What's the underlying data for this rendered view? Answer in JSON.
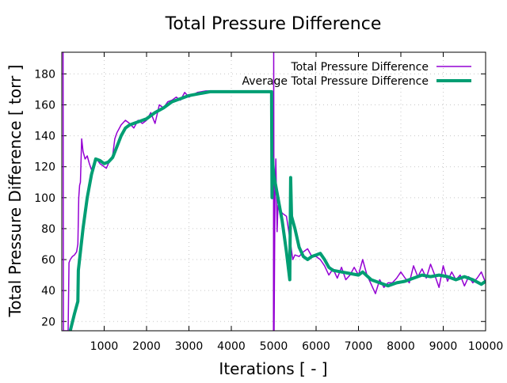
{
  "chart_data": {
    "type": "line",
    "title": "Total Pressure Difference",
    "xlabel": "Iterations [ - ]",
    "ylabel": "Total Pressure Difference [ torr ]",
    "xlim": [
      0,
      10000
    ],
    "ylim": [
      14,
      194
    ],
    "xticks": [
      1000,
      2000,
      3000,
      4000,
      5000,
      6000,
      7000,
      8000,
      9000,
      10000
    ],
    "yticks": [
      20,
      40,
      60,
      80,
      100,
      120,
      140,
      160,
      180
    ],
    "grid": true,
    "legend_position": "top-right",
    "series": [
      {
        "name": "Total Pressure Difference",
        "color": "#9400d3",
        "points": [
          [
            30,
            194
          ],
          [
            40,
            14
          ],
          [
            150,
            14
          ],
          [
            170,
            58
          ],
          [
            200,
            60
          ],
          [
            250,
            62
          ],
          [
            300,
            63
          ],
          [
            350,
            65
          ],
          [
            380,
            70
          ],
          [
            400,
            100
          ],
          [
            420,
            108
          ],
          [
            440,
            110
          ],
          [
            470,
            138
          ],
          [
            500,
            130
          ],
          [
            550,
            125
          ],
          [
            600,
            127
          ],
          [
            650,
            122
          ],
          [
            700,
            118
          ],
          [
            750,
            122
          ],
          [
            800,
            125
          ],
          [
            850,
            124
          ],
          [
            900,
            122
          ],
          [
            1000,
            120
          ],
          [
            1050,
            119
          ],
          [
            1100,
            122
          ],
          [
            1150,
            125
          ],
          [
            1200,
            127
          ],
          [
            1250,
            138
          ],
          [
            1300,
            142
          ],
          [
            1400,
            147
          ],
          [
            1500,
            150
          ],
          [
            1600,
            148
          ],
          [
            1700,
            145
          ],
          [
            1800,
            150
          ],
          [
            1900,
            148
          ],
          [
            2000,
            150
          ],
          [
            2100,
            155
          ],
          [
            2200,
            148
          ],
          [
            2300,
            160
          ],
          [
            2400,
            158
          ],
          [
            2500,
            162
          ],
          [
            2600,
            163
          ],
          [
            2700,
            165
          ],
          [
            2800,
            163
          ],
          [
            2900,
            168
          ],
          [
            3000,
            165
          ],
          [
            3200,
            168
          ],
          [
            3400,
            169
          ],
          [
            3500,
            169
          ],
          null,
          [
            4995,
            14
          ],
          [
            5000,
            194
          ],
          [
            5010,
            14
          ],
          [
            5030,
            100
          ],
          [
            5050,
            125
          ],
          [
            5080,
            78
          ],
          [
            5100,
            95
          ],
          [
            5200,
            90
          ],
          [
            5300,
            88
          ],
          [
            5400,
            70
          ],
          [
            5450,
            60
          ],
          [
            5500,
            63
          ],
          [
            5600,
            62
          ],
          [
            5700,
            65
          ],
          [
            5800,
            67
          ],
          [
            5900,
            62
          ],
          [
            6000,
            62
          ],
          [
            6100,
            60
          ],
          [
            6200,
            56
          ],
          [
            6300,
            50
          ],
          [
            6400,
            54
          ],
          [
            6500,
            48
          ],
          [
            6600,
            55
          ],
          [
            6700,
            47
          ],
          [
            6800,
            50
          ],
          [
            6900,
            55
          ],
          [
            7000,
            50
          ],
          [
            7100,
            60
          ],
          [
            7200,
            50
          ],
          [
            7300,
            44
          ],
          [
            7400,
            38
          ],
          [
            7500,
            47
          ],
          [
            7600,
            42
          ],
          [
            7700,
            45
          ],
          [
            7800,
            45
          ],
          [
            7900,
            48
          ],
          [
            8000,
            52
          ],
          [
            8100,
            48
          ],
          [
            8200,
            45
          ],
          [
            8300,
            56
          ],
          [
            8400,
            49
          ],
          [
            8500,
            54
          ],
          [
            8600,
            48
          ],
          [
            8700,
            57
          ],
          [
            8800,
            50
          ],
          [
            8900,
            42
          ],
          [
            9000,
            56
          ],
          [
            9100,
            46
          ],
          [
            9200,
            52
          ],
          [
            9300,
            47
          ],
          [
            9400,
            50
          ],
          [
            9500,
            43
          ],
          [
            9600,
            49
          ],
          [
            9700,
            45
          ],
          [
            9800,
            48
          ],
          [
            9900,
            52
          ],
          [
            10000,
            45
          ]
        ]
      },
      {
        "name": "Average Total Pressure Difference",
        "color": "#009e73",
        "points": [
          [
            200,
            14
          ],
          [
            300,
            25
          ],
          [
            380,
            33
          ],
          [
            390,
            53
          ],
          [
            500,
            80
          ],
          [
            600,
            100
          ],
          [
            700,
            115
          ],
          [
            800,
            125
          ],
          [
            900,
            124
          ],
          [
            1000,
            122
          ],
          [
            1100,
            123
          ],
          [
            1200,
            126
          ],
          [
            1300,
            133
          ],
          [
            1400,
            140
          ],
          [
            1500,
            145
          ],
          [
            1600,
            147
          ],
          [
            1800,
            149
          ],
          [
            2000,
            151
          ],
          [
            2200,
            155
          ],
          [
            2400,
            158
          ],
          [
            2600,
            162
          ],
          [
            2800,
            164
          ],
          [
            3000,
            166
          ],
          [
            3200,
            167
          ],
          [
            3500,
            168.5
          ],
          [
            4950,
            168.5
          ],
          [
            4960,
            100
          ],
          [
            4970,
            125
          ],
          [
            5000,
            115
          ],
          [
            5200,
            85
          ],
          [
            5300,
            65
          ],
          [
            5380,
            47
          ],
          [
            5400,
            113
          ],
          [
            5420,
            88
          ],
          [
            5500,
            80
          ],
          [
            5600,
            68
          ],
          [
            5700,
            62
          ],
          [
            5800,
            60
          ],
          [
            5900,
            62
          ],
          [
            6000,
            63
          ],
          [
            6100,
            64
          ],
          [
            6200,
            60
          ],
          [
            6300,
            55
          ],
          [
            6400,
            53
          ],
          [
            6600,
            52
          ],
          [
            6800,
            51
          ],
          [
            7000,
            50
          ],
          [
            7100,
            52
          ],
          [
            7300,
            47
          ],
          [
            7500,
            45
          ],
          [
            7700,
            43
          ],
          [
            7900,
            45
          ],
          [
            8100,
            46
          ],
          [
            8300,
            48
          ],
          [
            8500,
            50
          ],
          [
            8700,
            49
          ],
          [
            8900,
            50
          ],
          [
            9100,
            49
          ],
          [
            9300,
            47
          ],
          [
            9500,
            49
          ],
          [
            9700,
            47
          ],
          [
            9900,
            44
          ],
          [
            10000,
            46
          ]
        ]
      }
    ]
  }
}
